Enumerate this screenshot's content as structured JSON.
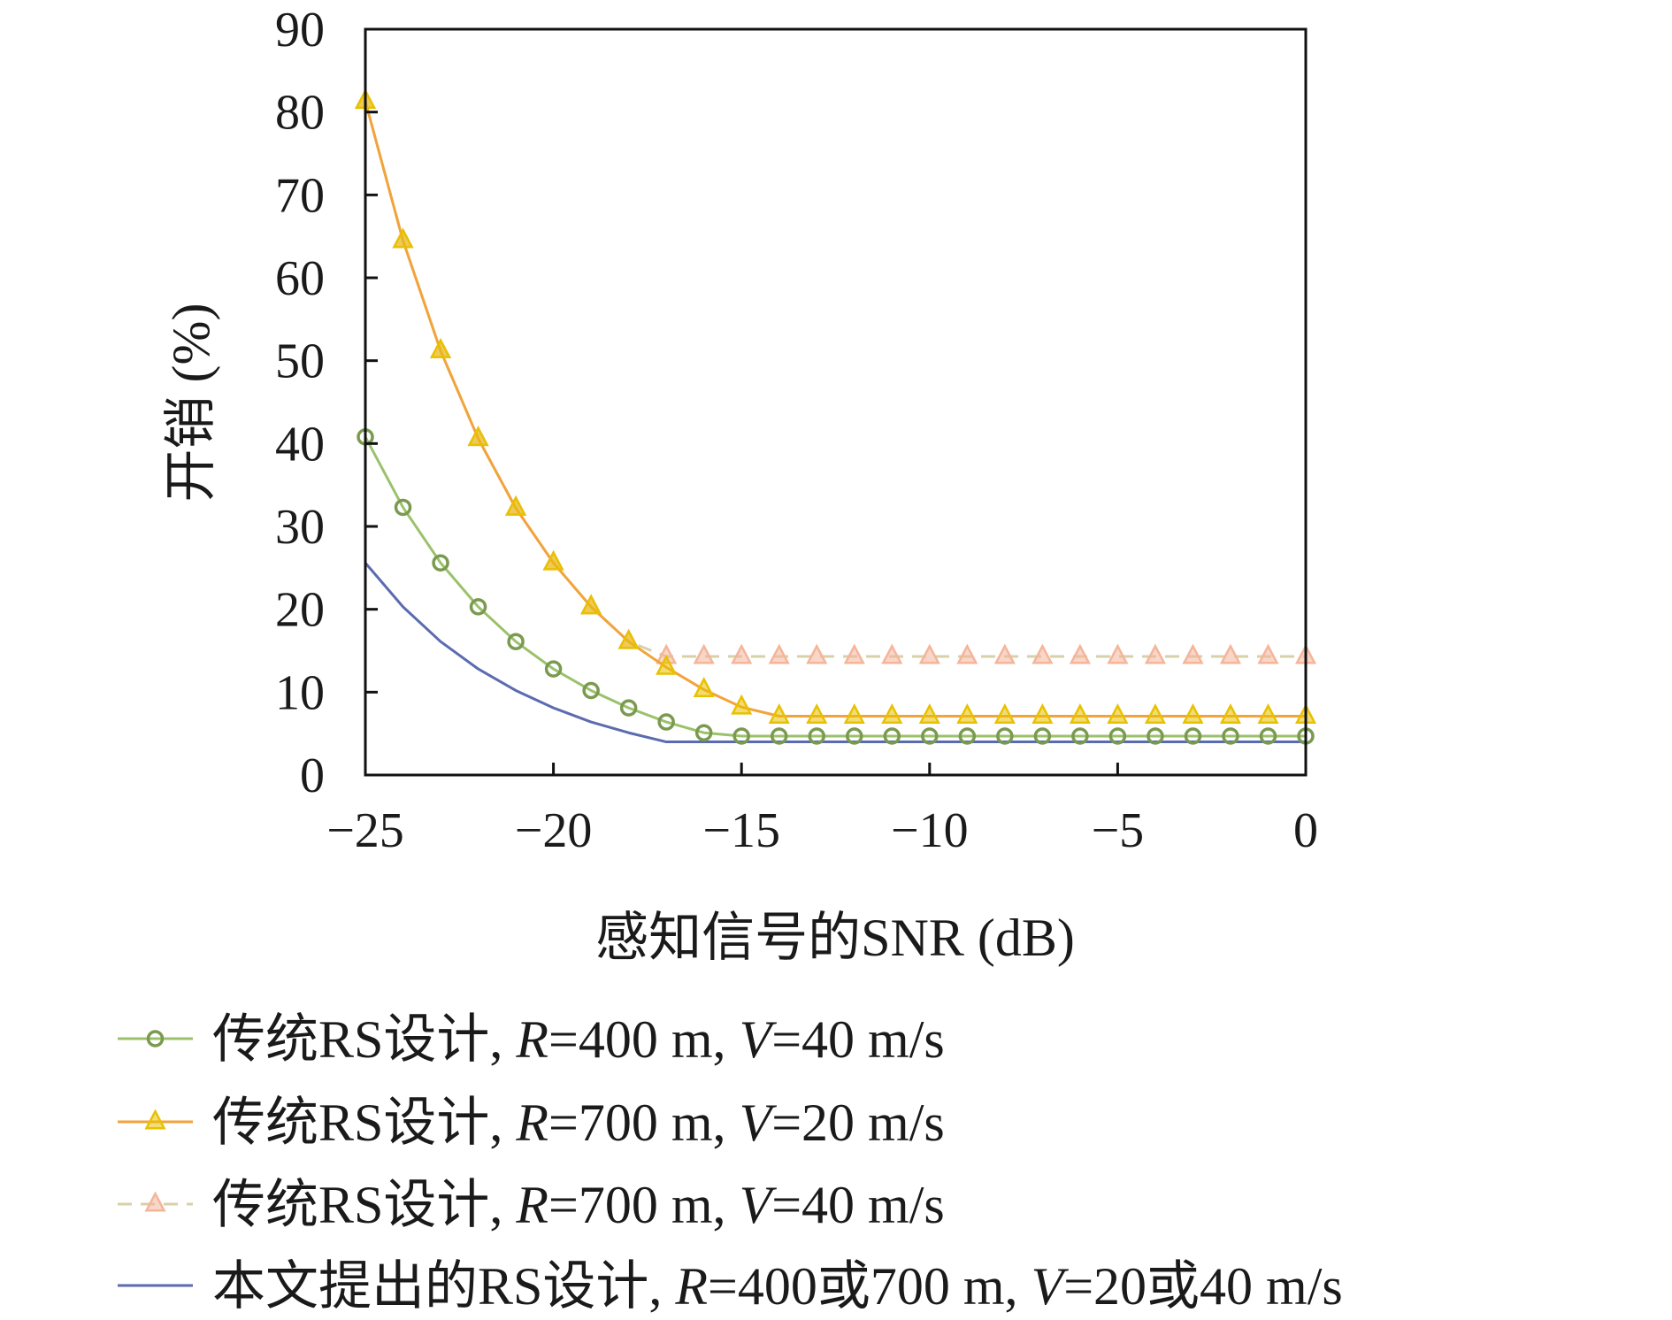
{
  "chart_data": {
    "type": "line",
    "xlabel": "感知信号的SNR (dB)",
    "ylabel": "开销 (%)",
    "xlim": [
      -25,
      0
    ],
    "ylim": [
      0,
      90
    ],
    "xticks": [
      -25,
      -20,
      -15,
      -10,
      -5,
      0
    ],
    "xtick_labels": [
      "−25",
      "−20",
      "−15",
      "−10",
      "−5",
      "0"
    ],
    "yticks": [
      0,
      10,
      20,
      30,
      40,
      50,
      60,
      70,
      80,
      90
    ],
    "ytick_labels": [
      "0",
      "10",
      "20",
      "30",
      "40",
      "50",
      "60",
      "70",
      "80",
      "90"
    ],
    "grid": false,
    "legend_position": "bottom",
    "x": [
      -25,
      -24,
      -23,
      -22,
      -21,
      -20,
      -19,
      -18,
      -17,
      -16,
      -15,
      -14,
      -13,
      -12,
      -11,
      -10,
      -9,
      -8,
      -7,
      -6,
      -5,
      -4,
      -3,
      -2,
      -1,
      0
    ],
    "series": [
      {
        "name": "传统RS设计, R=400 m, V=40 m/s",
        "legend_parts": [
          {
            "t": "传统RS设计, ",
            "i": false
          },
          {
            "t": "R",
            "i": true
          },
          {
            "t": "=400 m, ",
            "i": false
          },
          {
            "t": "V",
            "i": true
          },
          {
            "t": "=40 m/s",
            "i": false
          }
        ],
        "marker": "circle",
        "dash": "solid",
        "line_color": "#9bc26a",
        "marker_color": "#7a9a50",
        "values": [
          40.8,
          32.3,
          25.6,
          20.3,
          16.1,
          12.8,
          10.2,
          8.1,
          6.4,
          5.1,
          4.7,
          4.7,
          4.7,
          4.7,
          4.7,
          4.7,
          4.7,
          4.7,
          4.7,
          4.7,
          4.7,
          4.7,
          4.7,
          4.7,
          4.7,
          4.7
        ]
      },
      {
        "name": "传统RS设计, R=700 m, V=20 m/s",
        "legend_parts": [
          {
            "t": "传统RS设计, ",
            "i": false
          },
          {
            "t": "R",
            "i": true
          },
          {
            "t": "=700 m, ",
            "i": false
          },
          {
            "t": "V",
            "i": true
          },
          {
            "t": "=20 m/s",
            "i": false
          }
        ],
        "marker": "triangle",
        "dash": "solid",
        "line_color": "#f2a33a",
        "marker_color": "#e8c100",
        "values": [
          81.3,
          64.5,
          51.2,
          40.6,
          32.2,
          25.6,
          20.3,
          16.1,
          13.0,
          10.3,
          8.2,
          7.1,
          7.1,
          7.1,
          7.1,
          7.1,
          7.1,
          7.1,
          7.1,
          7.1,
          7.1,
          7.1,
          7.1,
          7.1,
          7.1,
          7.1
        ]
      },
      {
        "name": "传统RS设计, R=700 m, V=40 m/s",
        "legend_parts": [
          {
            "t": "传统RS设计, ",
            "i": false
          },
          {
            "t": "R",
            "i": true
          },
          {
            "t": "=700 m, ",
            "i": false
          },
          {
            "t": "V",
            "i": true
          },
          {
            "t": "=40 m/s",
            "i": false
          }
        ],
        "marker": "triangle",
        "dash": "dashed",
        "line_color": "#d8d0a8",
        "marker_color": "#f4b59a",
        "values": [
          81.3,
          64.5,
          51.2,
          40.6,
          32.2,
          25.6,
          20.3,
          16.1,
          14.3,
          14.3,
          14.3,
          14.3,
          14.3,
          14.3,
          14.3,
          14.3,
          14.3,
          14.3,
          14.3,
          14.3,
          14.3,
          14.3,
          14.3,
          14.3,
          14.3,
          14.3
        ]
      },
      {
        "name": "本文提出的RS设计, R=400或700 m, V=20或40 m/s",
        "legend_parts": [
          {
            "t": "本文提出的RS设计, ",
            "i": false
          },
          {
            "t": "R",
            "i": true
          },
          {
            "t": "=400或700 m, ",
            "i": false
          },
          {
            "t": "V",
            "i": true
          },
          {
            "t": "=20或40 m/s",
            "i": false
          }
        ],
        "marker": "none",
        "dash": "solid",
        "line_color": "#5b6bb0",
        "marker_color": "#5b6bb0",
        "values": [
          25.6,
          20.3,
          16.1,
          12.8,
          10.2,
          8.1,
          6.4,
          5.1,
          4.0,
          4.0,
          4.0,
          4.0,
          4.0,
          4.0,
          4.0,
          4.0,
          4.0,
          4.0,
          4.0,
          4.0,
          4.0,
          4.0,
          4.0,
          4.0,
          4.0,
          4.0
        ]
      }
    ]
  }
}
